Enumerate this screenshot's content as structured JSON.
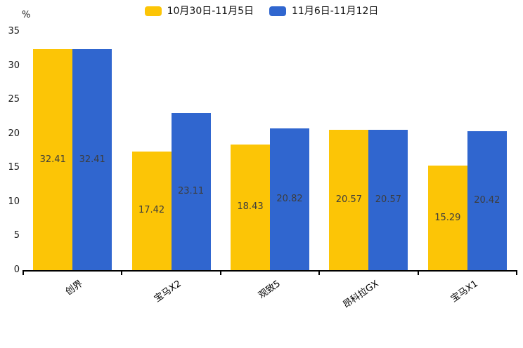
{
  "chart_data": {
    "type": "bar",
    "title": "",
    "xlabel": "",
    "ylabel": "%",
    "categories": [
      "创界",
      "宝马X2",
      "观致5",
      "昂科拉GX",
      "宝马X1"
    ],
    "series": [
      {
        "name": "10月30日-11月5日",
        "color": "#FCC506",
        "values": [
          32.41,
          17.42,
          18.43,
          20.57,
          15.29
        ]
      },
      {
        "name": "11月6日-11月12日",
        "color": "#3066CF",
        "values": [
          32.41,
          23.11,
          20.82,
          20.57,
          20.42
        ]
      }
    ],
    "ylim": [
      0,
      35
    ],
    "yticks": [
      0,
      5,
      10,
      15,
      20,
      25,
      30,
      35
    ],
    "grid": false,
    "legend_position": "top-center",
    "value_label_position": "inside-middle",
    "xtick_rotation_deg": 35,
    "axis_color": "#000000",
    "value_label_color": "#3d3d3d"
  }
}
